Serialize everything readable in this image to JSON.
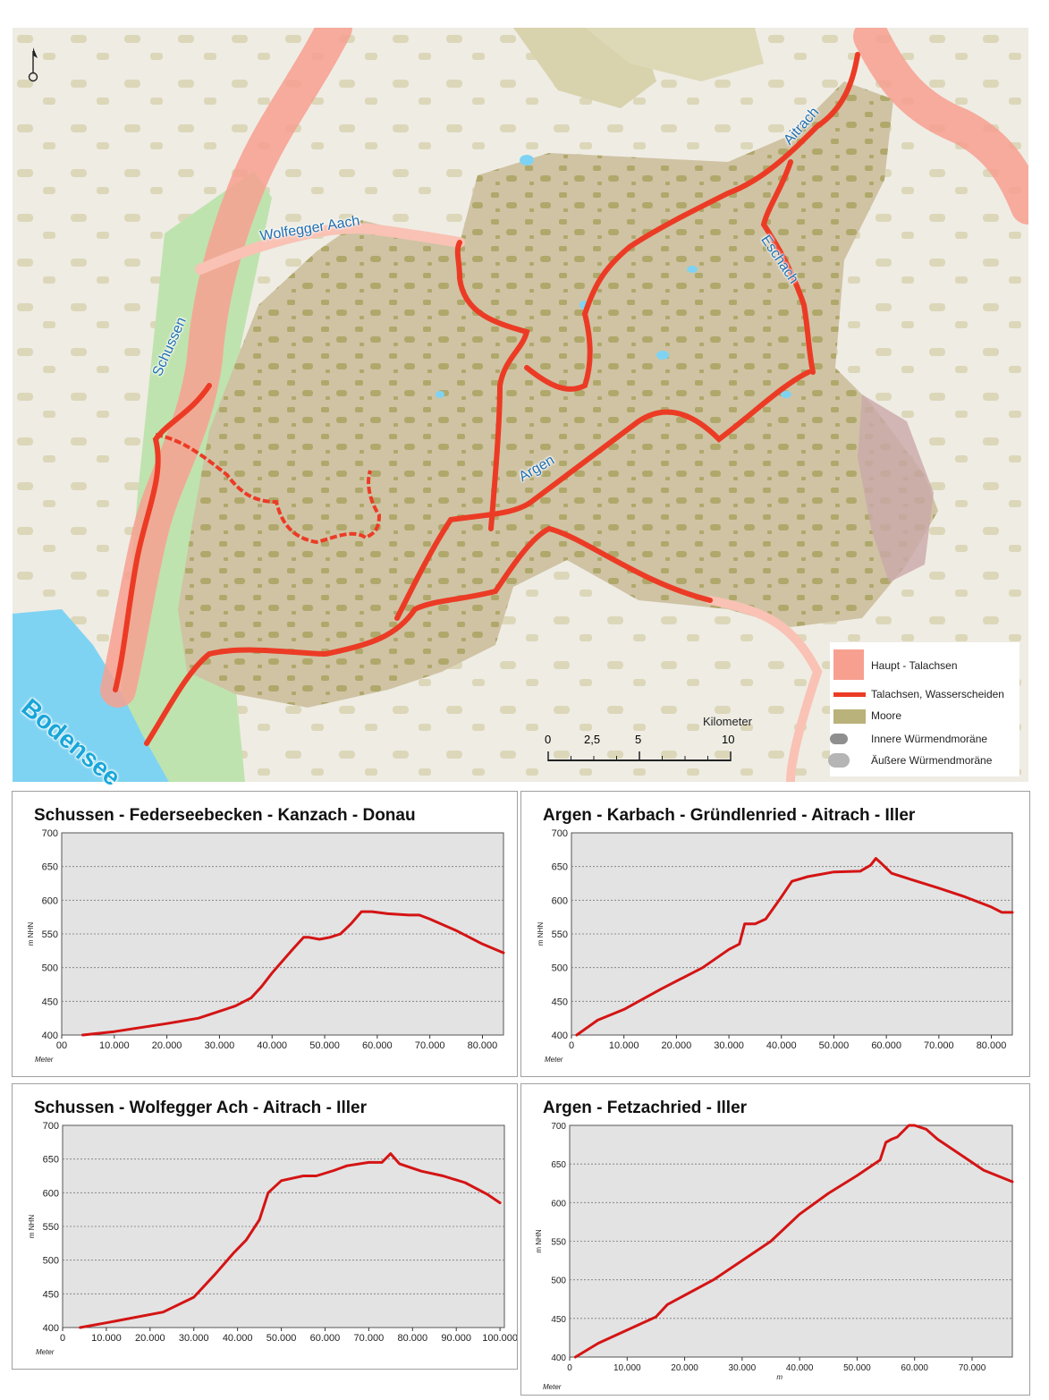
{
  "map": {
    "labels": {
      "schussen": "Schussen",
      "wolfegger_aach": "Wolfegger Aach",
      "aitrach": "Aitrach",
      "eschach": "Eschach",
      "argen": "Argen",
      "bodensee": "Bodensee"
    },
    "legend": {
      "items": [
        {
          "label": "Haupt - Talachsen",
          "color": "#f7a090"
        },
        {
          "label": "Talachsen, Wasserscheiden",
          "color": "#ec3b25"
        },
        {
          "label": "Moore",
          "color": "#b9b27a"
        },
        {
          "label": "Innere Würmendmoräne",
          "color": "#8f8f8f"
        },
        {
          "label": "Äußere Würmendmoräne",
          "color": "#b5b5b5"
        }
      ]
    },
    "scalebar": {
      "title": "Kilometer",
      "ticks": [
        "0",
        "2,5",
        "5",
        "10"
      ]
    },
    "colors": {
      "water": "#7fd3f2",
      "moor": "#b9b27a",
      "terrain": "#cfc3a4",
      "main_valley": "#f7a090",
      "route": "#ec3b25",
      "green": "#a9d99a"
    }
  },
  "charts": [
    {
      "title": "Schussen - Federseebecken - Kanzach - Donau",
      "ylabel": "m NHN",
      "xlabel": "Meter",
      "y_ticks": [
        "700",
        "650",
        "600",
        "550",
        "500",
        "450",
        "400"
      ],
      "x_ticks": [
        "00",
        "10.000",
        "20.000",
        "30.000",
        "40.000",
        "50.000",
        "60.000",
        "70.000",
        "80.000"
      ],
      "chart_data": {
        "type": "line",
        "xlim": [
          0,
          84000
        ],
        "ylim": [
          400,
          700
        ],
        "x": [
          4000,
          10000,
          20000,
          26000,
          33000,
          36000,
          38000,
          40000,
          42000,
          44000,
          46000,
          47000,
          49000,
          51000,
          53000,
          55000,
          57000,
          59000,
          62000,
          66000,
          68000,
          70000,
          75000,
          80000,
          84000
        ],
        "y": [
          400,
          405,
          417,
          425,
          443,
          455,
          472,
          492,
          510,
          528,
          545,
          545,
          542,
          545,
          550,
          565,
          583,
          583,
          580,
          578,
          578,
          572,
          555,
          535,
          522
        ]
      }
    },
    {
      "title": "Argen - Karbach - Gründlenried - Aitrach - Iller",
      "ylabel": "m NHN",
      "xlabel": "Meter",
      "y_ticks": [
        "700",
        "650",
        "600",
        "550",
        "500",
        "450",
        "400"
      ],
      "x_ticks": [
        "0",
        "10.000",
        "20.000",
        "30.000",
        "40.000",
        "50.000",
        "60.000",
        "70.000",
        "80.000"
      ],
      "chart_data": {
        "type": "line",
        "xlim": [
          0,
          84000
        ],
        "ylim": [
          400,
          700
        ],
        "x": [
          1000,
          5000,
          10000,
          17000,
          25000,
          30000,
          32000,
          33000,
          35000,
          37000,
          40000,
          42000,
          45000,
          50000,
          55000,
          57000,
          58000,
          59000,
          61000,
          65000,
          70000,
          75000,
          80000,
          82000,
          84000
        ],
        "y": [
          400,
          422,
          438,
          468,
          500,
          527,
          535,
          565,
          565,
          572,
          605,
          628,
          635,
          642,
          643,
          652,
          662,
          655,
          640,
          630,
          618,
          605,
          590,
          582,
          582
        ]
      }
    },
    {
      "title": "Schussen - Wolfegger Ach - Aitrach - Iller",
      "ylabel": "m NHN",
      "xlabel": "Meter",
      "y_ticks": [
        "700",
        "650",
        "600",
        "550",
        "500",
        "450",
        "400"
      ],
      "x_ticks": [
        "0",
        "10.000",
        "20.000",
        "30.000",
        "40.000",
        "50.000",
        "60.000",
        "70.000",
        "80.000",
        "90.000",
        "100.000"
      ],
      "chart_data": {
        "type": "line",
        "xlim": [
          0,
          101000
        ],
        "ylim": [
          400,
          700
        ],
        "x": [
          4000,
          10000,
          23000,
          30000,
          35000,
          39000,
          42000,
          45000,
          47000,
          50000,
          55000,
          58000,
          62000,
          65000,
          70000,
          73000,
          75000,
          77000,
          82000,
          87000,
          92000,
          97000,
          100000
        ],
        "y": [
          400,
          407,
          423,
          445,
          480,
          510,
          530,
          560,
          600,
          618,
          625,
          625,
          633,
          640,
          645,
          645,
          658,
          643,
          632,
          625,
          615,
          598,
          585
        ]
      }
    },
    {
      "title": "Argen - Fetzachried - Iller",
      "ylabel": "m NHN",
      "xlabel": "m",
      "y_ticks": [
        "700",
        "650",
        "600",
        "550",
        "500",
        "450",
        "400"
      ],
      "x_ticks": [
        "0",
        "10.000",
        "20.000",
        "30.000",
        "40.000",
        "50.000",
        "60.000",
        "70.000"
      ],
      "chart_data": {
        "type": "line",
        "xlim": [
          0,
          77000
        ],
        "ylim": [
          400,
          700
        ],
        "x": [
          1000,
          5000,
          15000,
          17000,
          25000,
          30000,
          35000,
          40000,
          45000,
          50000,
          54000,
          55000,
          56000,
          57000,
          59000,
          60000,
          62000,
          64000,
          68000,
          72000,
          77000
        ],
        "y": [
          400,
          418,
          452,
          468,
          500,
          525,
          550,
          585,
          612,
          635,
          655,
          678,
          682,
          685,
          700,
          700,
          695,
          682,
          662,
          642,
          627
        ]
      }
    }
  ]
}
